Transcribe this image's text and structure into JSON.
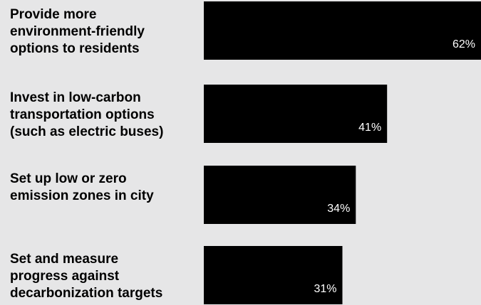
{
  "colors": {
    "background": "#e6e6e7",
    "bar": "#000000",
    "label_text": "#000000",
    "value_text": "#ffffff"
  },
  "chart_data": {
    "type": "bar",
    "orientation": "horizontal",
    "categories": [
      [
        "Provide more",
        "environment-friendly",
        "options to residents"
      ],
      [
        "Invest in low-carbon",
        "transportation options",
        "(such as electric buses)"
      ],
      [
        "Set up low or zero",
        "emission zones in city"
      ],
      [
        "Set and measure",
        "progress against",
        "decarbonization targets"
      ]
    ],
    "values": [
      62,
      41,
      34,
      31
    ],
    "value_labels": [
      "62%",
      "41%",
      "34%",
      "31%"
    ],
    "xlim": [
      0,
      62
    ],
    "grid": false,
    "legend": "none",
    "title": "",
    "xlabel": "",
    "ylabel": ""
  }
}
